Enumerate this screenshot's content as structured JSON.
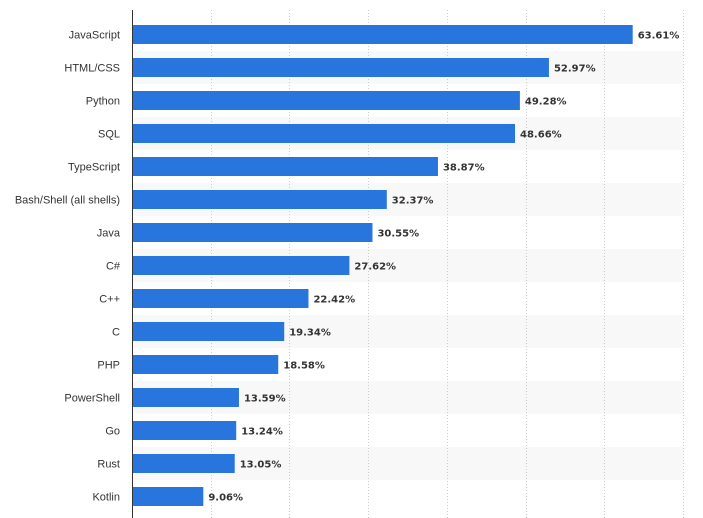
{
  "chart_data": {
    "type": "bar",
    "orientation": "horizontal",
    "categories": [
      "JavaScript",
      "HTML/CSS",
      "Python",
      "SQL",
      "TypeScript",
      "Bash/Shell (all shells)",
      "Java",
      "C#",
      "C++",
      "C",
      "PHP",
      "PowerShell",
      "Go",
      "Rust",
      "Kotlin"
    ],
    "values": [
      63.61,
      52.97,
      49.28,
      48.66,
      38.87,
      32.37,
      30.55,
      27.62,
      22.42,
      19.34,
      18.58,
      13.59,
      13.24,
      13.05,
      9.06
    ],
    "value_labels": [
      "63.61%",
      "52.97%",
      "49.28%",
      "48.66%",
      "38.87%",
      "32.37%",
      "30.55%",
      "27.62%",
      "22.42%",
      "19.34%",
      "18.58%",
      "13.59%",
      "13.24%",
      "13.05%",
      "9.06%"
    ],
    "xlim": [
      0,
      70
    ],
    "x_gridline_step": 10,
    "grid": true,
    "alternating_row_bands": true,
    "legend": "none",
    "colors": {
      "bar": "#2876dd",
      "band": "#f8f8f8",
      "gridline": "#cccccc",
      "axis": "#333333",
      "text": "#333333"
    }
  }
}
